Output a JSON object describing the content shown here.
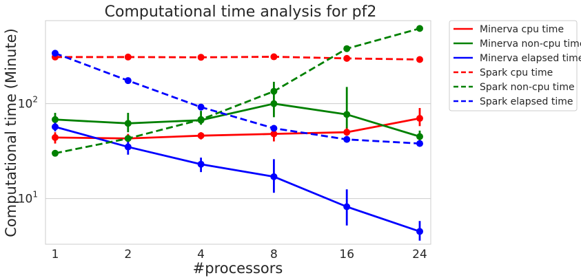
{
  "chart_data": {
    "type": "line",
    "title": "Computational time analysis for pf2",
    "xlabel": "#processors",
    "ylabel": "Computational time (Minute)",
    "categories": [
      "1",
      "2",
      "4",
      "8",
      "16",
      "24"
    ],
    "y_scale": "log",
    "ylim": [
      3.3,
      750
    ],
    "yticks": [
      {
        "value": 10,
        "base": "10",
        "exp": "1"
      },
      {
        "value": 100,
        "base": "10",
        "exp": "2"
      }
    ],
    "grid": true,
    "legend_position": "outside-right",
    "series": [
      {
        "name": "Minerva cpu time",
        "color": "#ff0000",
        "dash": "solid",
        "values": [
          44,
          43,
          46,
          48,
          50,
          70
        ],
        "err_low": [
          38,
          38,
          42,
          40,
          46,
          58
        ],
        "err_high": [
          50,
          48,
          50,
          56,
          56,
          90
        ]
      },
      {
        "name": "Minerva non-cpu time",
        "color": "#008000",
        "dash": "solid",
        "values": [
          68,
          62,
          67,
          100,
          77,
          45
        ],
        "err_low": [
          60,
          50,
          60,
          72,
          55,
          40
        ],
        "err_high": [
          80,
          80,
          84,
          170,
          150,
          52
        ]
      },
      {
        "name": "Minerva elapsed time",
        "color": "#0000ff",
        "dash": "solid",
        "values": [
          57,
          35,
          23,
          17,
          8.2,
          4.5
        ],
        "err_low": [
          51,
          29,
          19,
          11.5,
          5.2,
          3.6
        ],
        "err_high": [
          63,
          41,
          27,
          26,
          12.5,
          5.8
        ]
      },
      {
        "name": "Spark cpu time",
        "color": "#ff0000",
        "dash": "dashed",
        "values": [
          310,
          310,
          308,
          312,
          300,
          292
        ]
      },
      {
        "name": "Spark non-cpu time",
        "color": "#008000",
        "dash": "dashed",
        "values": [
          30,
          43,
          68,
          135,
          380,
          620
        ]
      },
      {
        "name": "Spark elapsed time",
        "color": "#0000ff",
        "dash": "dashed",
        "values": [
          340,
          175,
          92,
          55,
          42,
          38
        ]
      }
    ]
  }
}
